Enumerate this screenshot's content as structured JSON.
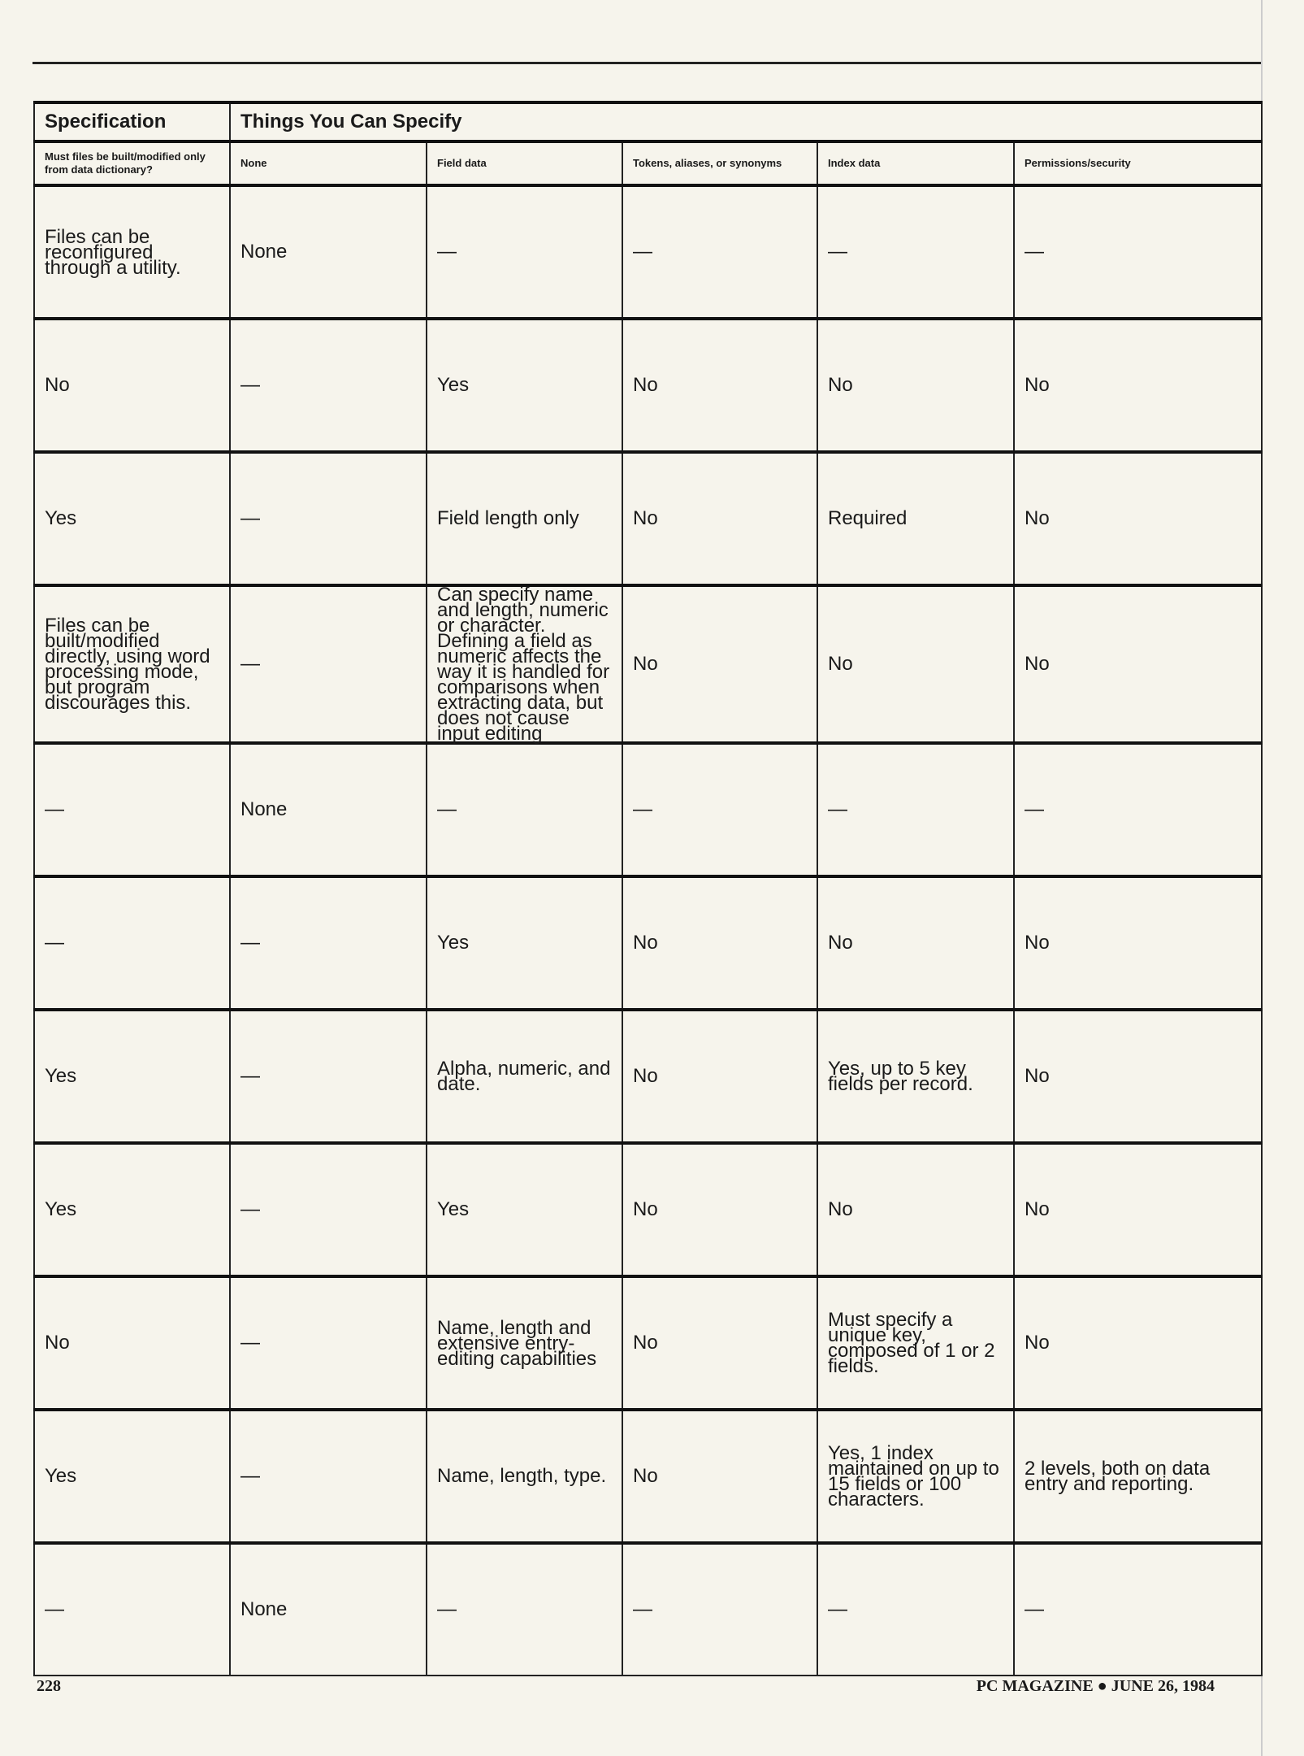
{
  "header": {
    "specification": "Specification",
    "things": "Things You Can Specify"
  },
  "columns": [
    "Must files be built/modified only from data dictionary?",
    "None",
    "Field data",
    "Tokens, aliases, or synonyms",
    "Index data",
    "Permissions/security"
  ],
  "rows": [
    [
      "Files can be reconfigured through a utility.",
      "None",
      "—",
      "—",
      "—",
      "—"
    ],
    [
      "No",
      "—",
      "Yes",
      "No",
      "No",
      "No"
    ],
    [
      "Yes",
      "—",
      "Field length only",
      "No",
      "Required",
      "No"
    ],
    [
      "Files can be built/modified directly, using word processing mode, but program discourages this.",
      "—",
      "Can specify name and length, numeric or character. Defining a field as numeric affects the way it is handled for comparisons when extracting data, but does not cause input editing",
      "No",
      "No",
      "No"
    ],
    [
      "—",
      "None",
      "—",
      "—",
      "—",
      "—"
    ],
    [
      "—",
      "—",
      "Yes",
      "No",
      "No",
      "No"
    ],
    [
      "Yes",
      "—",
      "Alpha, numeric, and date.",
      "No",
      "Yes, up to 5 key fields per record.",
      "No"
    ],
    [
      "Yes",
      "—",
      "Yes",
      "No",
      "No",
      "No"
    ],
    [
      "No",
      "—",
      "Name, length and extensive entry-editing capabilities",
      "No",
      "Must specify a unique key, composed of 1 or 2 fields.",
      "No"
    ],
    [
      "Yes",
      "—",
      "Name, length, type.",
      "No",
      "Yes, 1 index maintained on up to 15 fields or 100 characters.",
      "2 levels, both on data entry and reporting."
    ],
    [
      "—",
      "None",
      "—",
      "—",
      "—",
      "—"
    ]
  ],
  "footer": {
    "page": "228",
    "magazine": "PC MAGAZINE ● JUNE 26, 1984"
  }
}
